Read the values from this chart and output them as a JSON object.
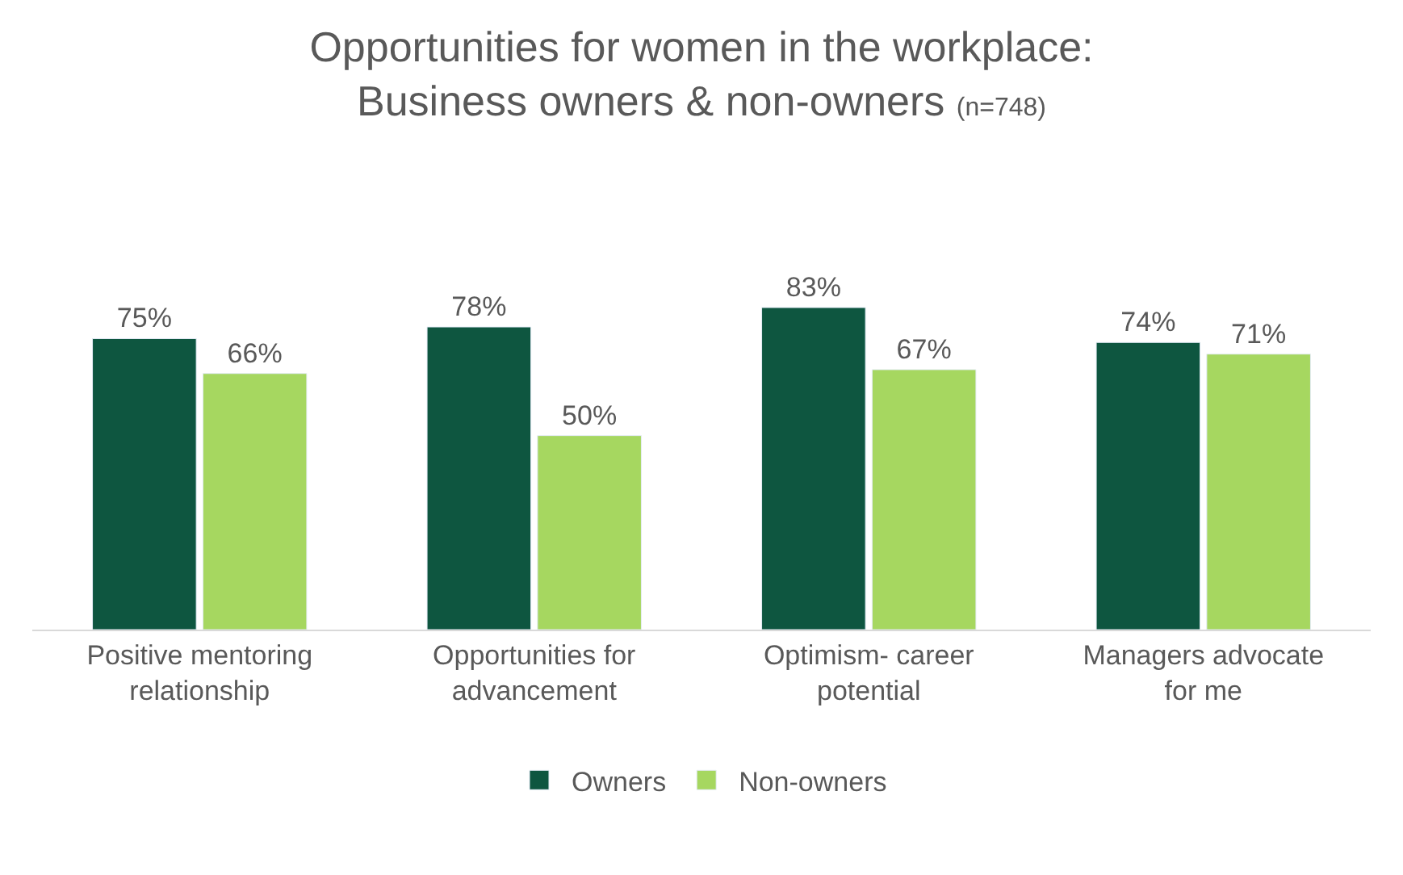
{
  "chart_data": {
    "type": "bar",
    "title": "Opportunities for women in the workplace:\nBusiness owners & non-owners",
    "subtitle": "(n=748)",
    "categories": [
      "Positive mentoring relationship",
      "Opportunities for advancement",
      "Optimism- career potential",
      "Managers advocate for me"
    ],
    "series": [
      {
        "name": "Owners",
        "color": "#0e5640",
        "values": [
          75,
          78,
          83,
          74
        ],
        "value_labels": [
          "75%",
          "78%",
          "83%",
          "74%"
        ]
      },
      {
        "name": "Non-owners",
        "color": "#a6d760",
        "values": [
          66,
          50,
          67,
          71
        ],
        "value_labels": [
          "66%",
          "50%",
          "67%",
          "71%"
        ]
      }
    ],
    "legend": "bottom",
    "tick_labels": "x"
  }
}
